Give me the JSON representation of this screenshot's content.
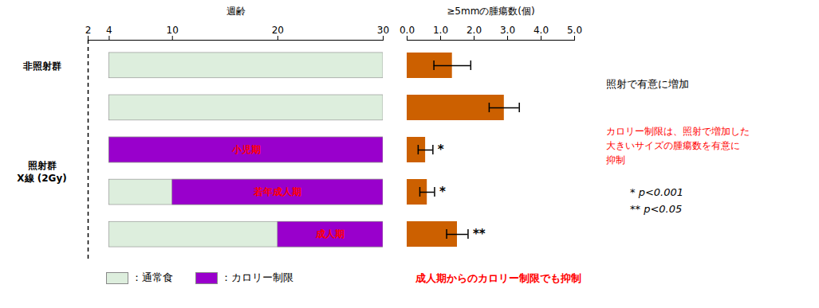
{
  "chart_data": [
    {
      "type": "timeline",
      "title": "週齢",
      "xlim": [
        2,
        30
      ],
      "xticks": [
        2,
        4,
        10,
        20,
        30
      ],
      "row_groups": [
        "非照射群",
        "照射群\nX線 (2Gy)",
        "照射群\nX線 (2Gy)",
        "照射群\nX線 (2Gy)",
        "照射群\nX線 (2Gy)"
      ],
      "series": [
        {
          "name": "：通常食",
          "color": "#ddeedd",
          "starts": [
            4,
            4,
            4,
            4,
            4
          ],
          "ends": [
            30,
            30,
            30,
            30,
            30
          ]
        },
        {
          "name": "：カロリー制限",
          "color": "#9900cc",
          "starts": [
            null,
            null,
            4,
            10,
            20
          ],
          "ends": [
            null,
            null,
            30,
            30,
            30
          ],
          "labels": [
            null,
            null,
            "小児期",
            "若年成人期",
            "成人期"
          ]
        }
      ],
      "legend": "bottom"
    },
    {
      "type": "bar",
      "orientation": "horizontal",
      "title": "≥5mmの腫瘍数(個)",
      "categories": [
        null,
        null,
        null,
        null,
        null
      ],
      "values": [
        1.35,
        2.9,
        0.55,
        0.6,
        1.5
      ],
      "errors": [
        0.55,
        0.45,
        0.22,
        0.22,
        0.32
      ],
      "significance": [
        null,
        null,
        "*",
        "*",
        "**"
      ],
      "color": "#cc6000",
      "xlim": [
        0,
        5
      ],
      "xticks": [
        0,
        1,
        2,
        3,
        4,
        5
      ],
      "grid": false,
      "annotations": [
        {
          "text": "照射で有意に増加",
          "color": "black"
        },
        {
          "text": "カロリー制限は、照射で増加した\n大きいサイズの腫瘍数を有意に\n抑制",
          "color": "red"
        },
        {
          "text": "成人期からのカロリー制限でも抑制",
          "color": "red"
        },
        {
          "text": "* p<0.001",
          "color": "black"
        },
        {
          "text": "** p<0.05",
          "color": "black"
        }
      ]
    }
  ]
}
